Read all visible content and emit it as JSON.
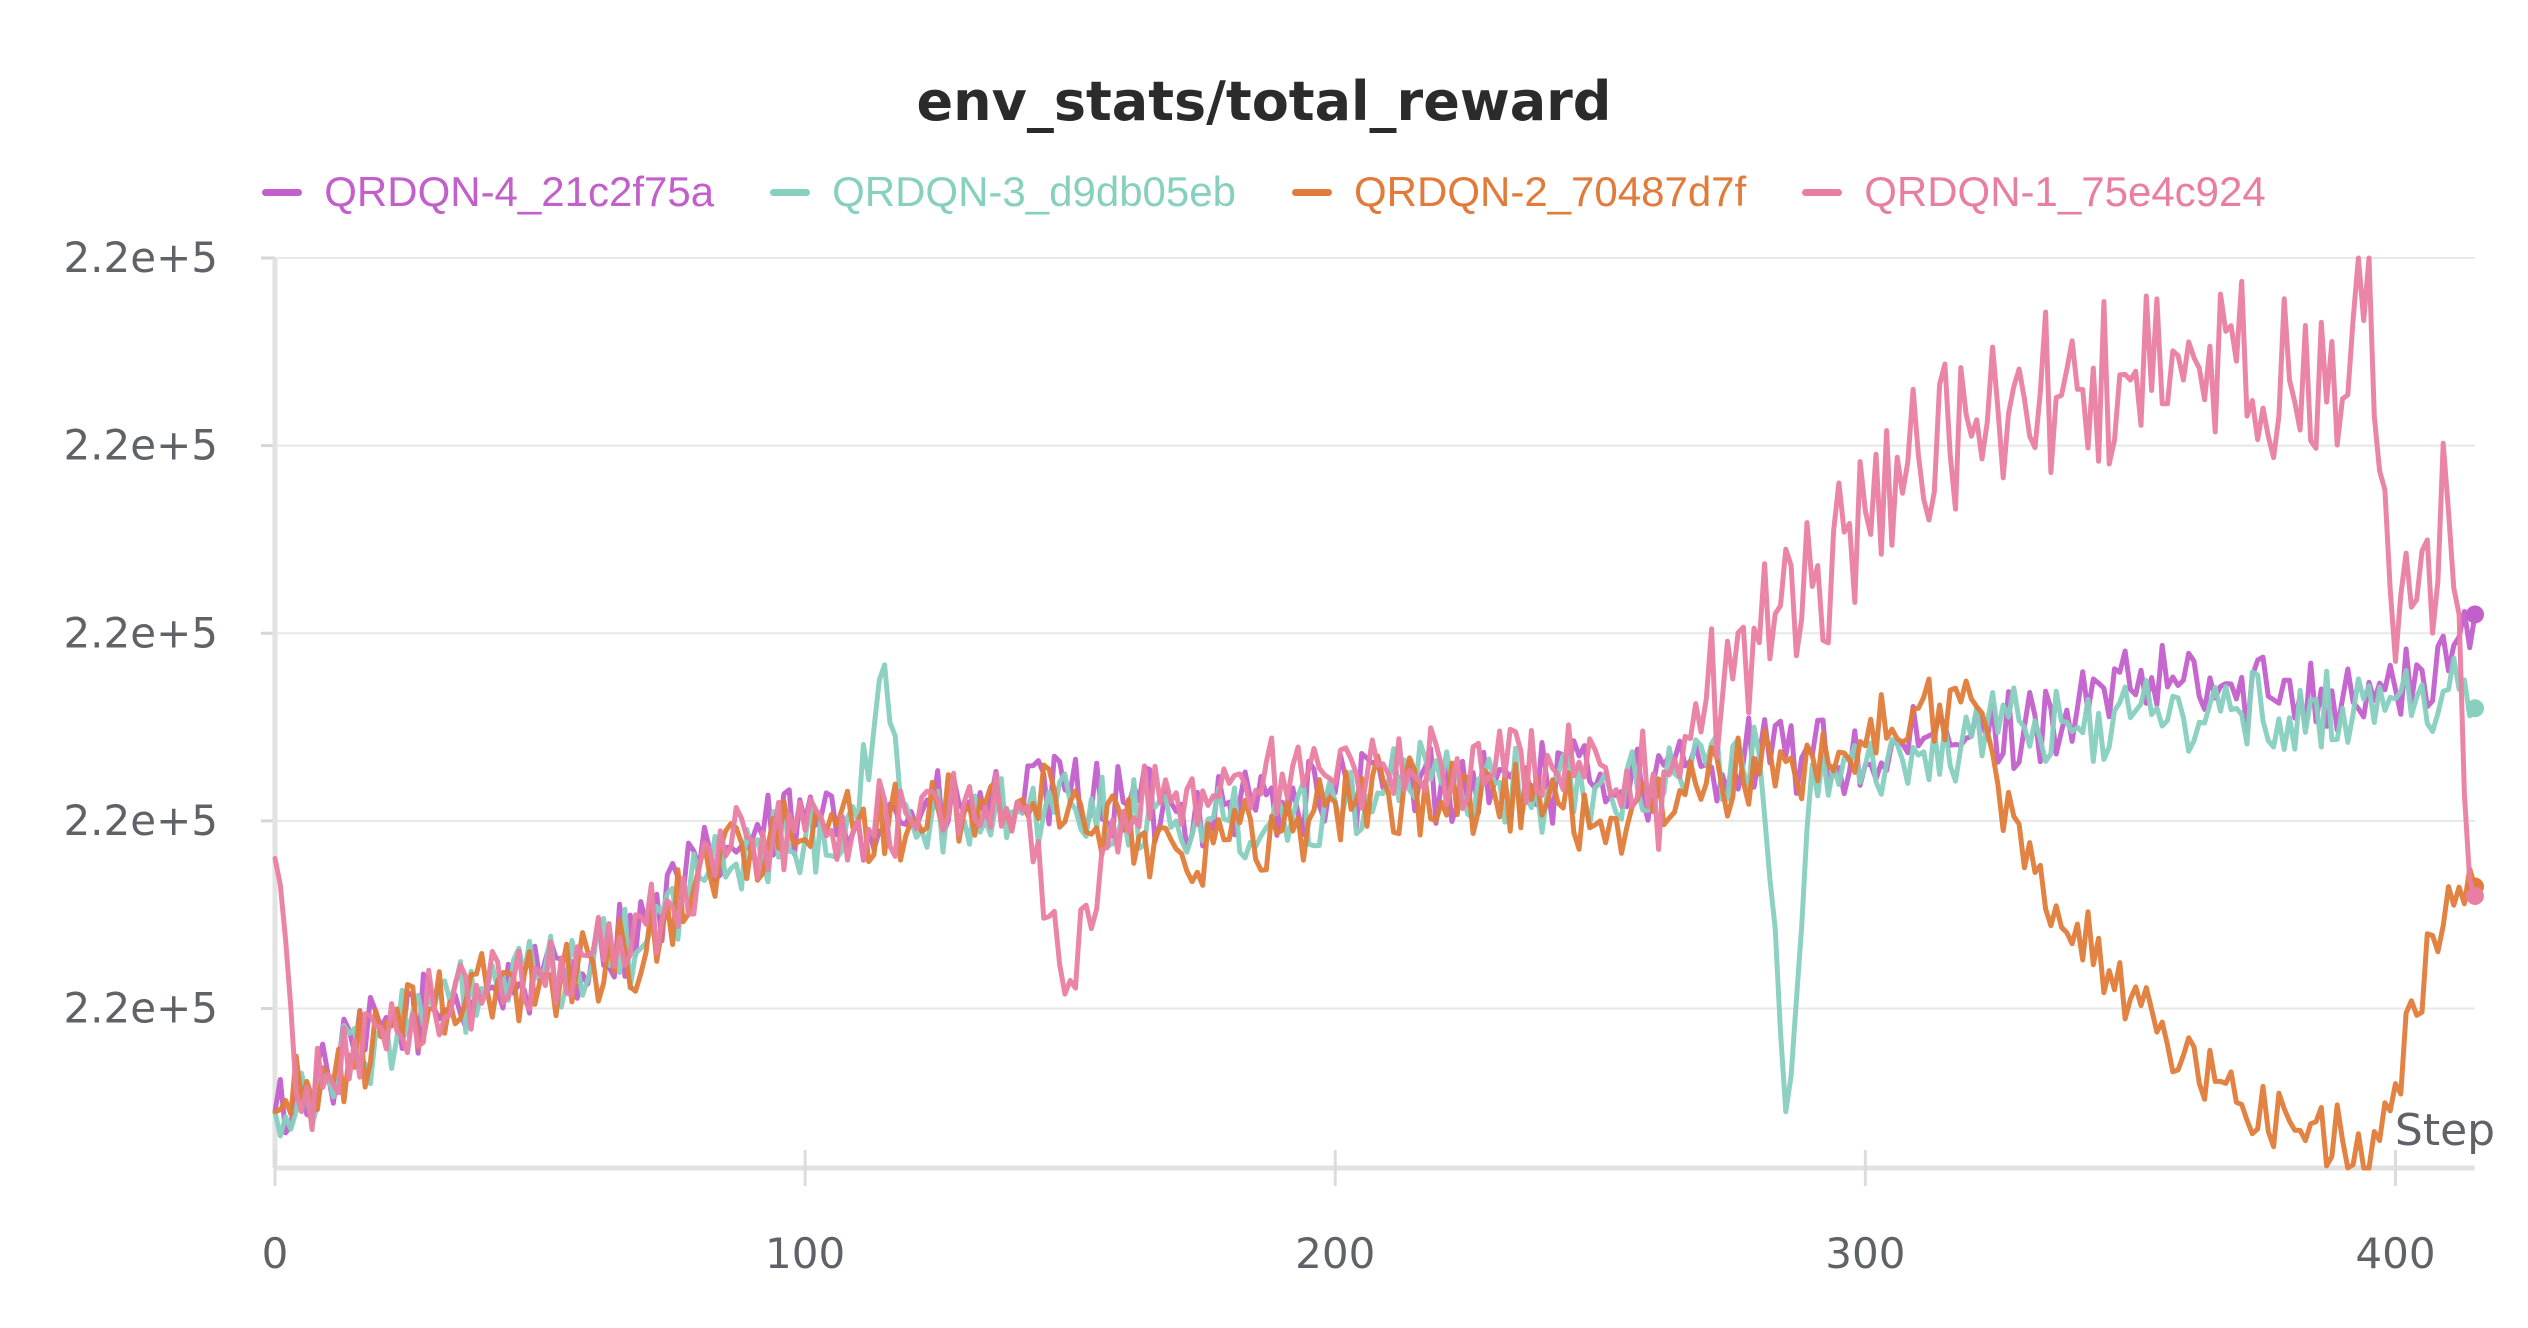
{
  "chart_data": {
    "type": "line",
    "title": "env_stats/total_reward",
    "xlabel": "Step",
    "ylabel": "",
    "xlim": [
      0,
      415
    ],
    "ylim": [
      0,
      4.85
    ],
    "x_ticks": [
      0,
      100,
      200,
      300,
      400
    ],
    "y_ticks": [
      {
        "value": 0.85,
        "label": "2.2e+5"
      },
      {
        "value": 1.85,
        "label": "2.2e+5"
      },
      {
        "value": 2.85,
        "label": "2.2e+5"
      },
      {
        "value": 3.85,
        "label": "2.2e+5"
      },
      {
        "value": 4.85,
        "label": "2.2e+5"
      }
    ],
    "grid": true,
    "legend_position": "top",
    "series": [
      {
        "name": "QRDQN-4_21c2f75a",
        "color": "#c25fcb",
        "points": [
          [
            0,
            0.3
          ],
          [
            10,
            0.5
          ],
          [
            20,
            0.75
          ],
          [
            30,
            0.85
          ],
          [
            40,
            0.95
          ],
          [
            50,
            1.0
          ],
          [
            60,
            1.15
          ],
          [
            70,
            1.3
          ],
          [
            80,
            1.6
          ],
          [
            90,
            1.75
          ],
          [
            100,
            1.85
          ],
          [
            110,
            1.85
          ],
          [
            120,
            1.9
          ],
          [
            130,
            1.9
          ],
          [
            140,
            1.95
          ],
          [
            150,
            2.0
          ],
          [
            160,
            1.95
          ],
          [
            170,
            1.9
          ],
          [
            180,
            1.95
          ],
          [
            190,
            1.95
          ],
          [
            200,
            2.0
          ],
          [
            210,
            2.05
          ],
          [
            220,
            2.05
          ],
          [
            230,
            2.05
          ],
          [
            240,
            2.05
          ],
          [
            250,
            2.1
          ],
          [
            260,
            2.05
          ],
          [
            270,
            2.15
          ],
          [
            280,
            2.2
          ],
          [
            290,
            2.2
          ],
          [
            300,
            2.15
          ],
          [
            310,
            2.25
          ],
          [
            320,
            2.3
          ],
          [
            330,
            2.35
          ],
          [
            340,
            2.45
          ],
          [
            350,
            2.55
          ],
          [
            360,
            2.6
          ],
          [
            370,
            2.5
          ],
          [
            380,
            2.6
          ],
          [
            390,
            2.5
          ],
          [
            400,
            2.55
          ],
          [
            410,
            2.65
          ],
          [
            415,
            2.95
          ]
        ]
      },
      {
        "name": "QRDQN-3_d9db05eb",
        "color": "#87cfbf",
        "points": [
          [
            0,
            0.3
          ],
          [
            10,
            0.5
          ],
          [
            20,
            0.7
          ],
          [
            30,
            0.85
          ],
          [
            40,
            0.95
          ],
          [
            50,
            1.0
          ],
          [
            60,
            1.1
          ],
          [
            70,
            1.2
          ],
          [
            80,
            1.55
          ],
          [
            90,
            1.7
          ],
          [
            100,
            1.75
          ],
          [
            110,
            1.85
          ],
          [
            114,
            2.6
          ],
          [
            120,
            1.85
          ],
          [
            130,
            1.85
          ],
          [
            140,
            1.9
          ],
          [
            150,
            1.95
          ],
          [
            160,
            1.9
          ],
          [
            170,
            1.85
          ],
          [
            180,
            1.85
          ],
          [
            190,
            1.9
          ],
          [
            200,
            1.95
          ],
          [
            210,
            2.05
          ],
          [
            220,
            2.05
          ],
          [
            230,
            2.05
          ],
          [
            240,
            2.0
          ],
          [
            250,
            2.05
          ],
          [
            260,
            2.1
          ],
          [
            270,
            2.15
          ],
          [
            280,
            2.2
          ],
          [
            285,
            0.3
          ],
          [
            290,
            2.15
          ],
          [
            300,
            2.15
          ],
          [
            310,
            2.2
          ],
          [
            320,
            2.3
          ],
          [
            330,
            2.35
          ],
          [
            340,
            2.35
          ],
          [
            350,
            2.4
          ],
          [
            360,
            2.4
          ],
          [
            370,
            2.45
          ],
          [
            380,
            2.4
          ],
          [
            390,
            2.45
          ],
          [
            400,
            2.5
          ],
          [
            410,
            2.55
          ],
          [
            415,
            2.45
          ]
        ]
      },
      {
        "name": "QRDQN-2_70487d7f",
        "color": "#e07b39",
        "points": [
          [
            0,
            0.3
          ],
          [
            10,
            0.5
          ],
          [
            20,
            0.7
          ],
          [
            30,
            0.85
          ],
          [
            40,
            0.95
          ],
          [
            50,
            1.0
          ],
          [
            60,
            1.1
          ],
          [
            70,
            1.15
          ],
          [
            80,
            1.6
          ],
          [
            90,
            1.75
          ],
          [
            100,
            1.75
          ],
          [
            110,
            1.85
          ],
          [
            120,
            1.85
          ],
          [
            130,
            1.9
          ],
          [
            140,
            1.95
          ],
          [
            150,
            1.95
          ],
          [
            160,
            1.8
          ],
          [
            170,
            1.7
          ],
          [
            180,
            1.75
          ],
          [
            190,
            1.8
          ],
          [
            200,
            1.95
          ],
          [
            210,
            2.0
          ],
          [
            220,
            1.95
          ],
          [
            230,
            2.0
          ],
          [
            240,
            1.95
          ],
          [
            250,
            1.85
          ],
          [
            260,
            1.9
          ],
          [
            270,
            2.05
          ],
          [
            280,
            2.1
          ],
          [
            290,
            2.2
          ],
          [
            300,
            2.25
          ],
          [
            310,
            2.45
          ],
          [
            320,
            2.5
          ],
          [
            330,
            1.6
          ],
          [
            340,
            1.3
          ],
          [
            350,
            0.9
          ],
          [
            360,
            0.6
          ],
          [
            370,
            0.35
          ],
          [
            380,
            0.25
          ],
          [
            390,
            0.15
          ],
          [
            395,
            0.0
          ],
          [
            400,
            0.45
          ],
          [
            410,
            1.5
          ],
          [
            415,
            1.5
          ]
        ]
      },
      {
        "name": "QRDQN-1_75e4c924",
        "color": "#e97ea3",
        "points": [
          [
            0,
            1.65
          ],
          [
            5,
            0.3
          ],
          [
            10,
            0.5
          ],
          [
            20,
            0.75
          ],
          [
            30,
            0.85
          ],
          [
            40,
            0.95
          ],
          [
            50,
            1.05
          ],
          [
            60,
            1.15
          ],
          [
            70,
            1.3
          ],
          [
            80,
            1.6
          ],
          [
            90,
            1.75
          ],
          [
            100,
            1.8
          ],
          [
            110,
            1.85
          ],
          [
            120,
            1.85
          ],
          [
            130,
            1.95
          ],
          [
            140,
            1.95
          ],
          [
            150,
            1.0
          ],
          [
            160,
            1.9
          ],
          [
            170,
            2.0
          ],
          [
            180,
            2.05
          ],
          [
            190,
            2.1
          ],
          [
            200,
            2.05
          ],
          [
            210,
            2.1
          ],
          [
            220,
            2.15
          ],
          [
            230,
            2.1
          ],
          [
            240,
            2.2
          ],
          [
            250,
            2.15
          ],
          [
            260,
            2.1
          ],
          [
            270,
            2.5
          ],
          [
            280,
            2.8
          ],
          [
            290,
            3.1
          ],
          [
            300,
            3.5
          ],
          [
            310,
            3.8
          ],
          [
            320,
            3.9
          ],
          [
            330,
            4.1
          ],
          [
            340,
            4.15
          ],
          [
            350,
            4.2
          ],
          [
            360,
            4.2
          ],
          [
            370,
            4.3
          ],
          [
            380,
            4.2
          ],
          [
            390,
            4.1
          ],
          [
            395,
            4.85
          ],
          [
            400,
            2.7
          ],
          [
            410,
            3.5
          ],
          [
            415,
            1.45
          ]
        ]
      }
    ]
  }
}
